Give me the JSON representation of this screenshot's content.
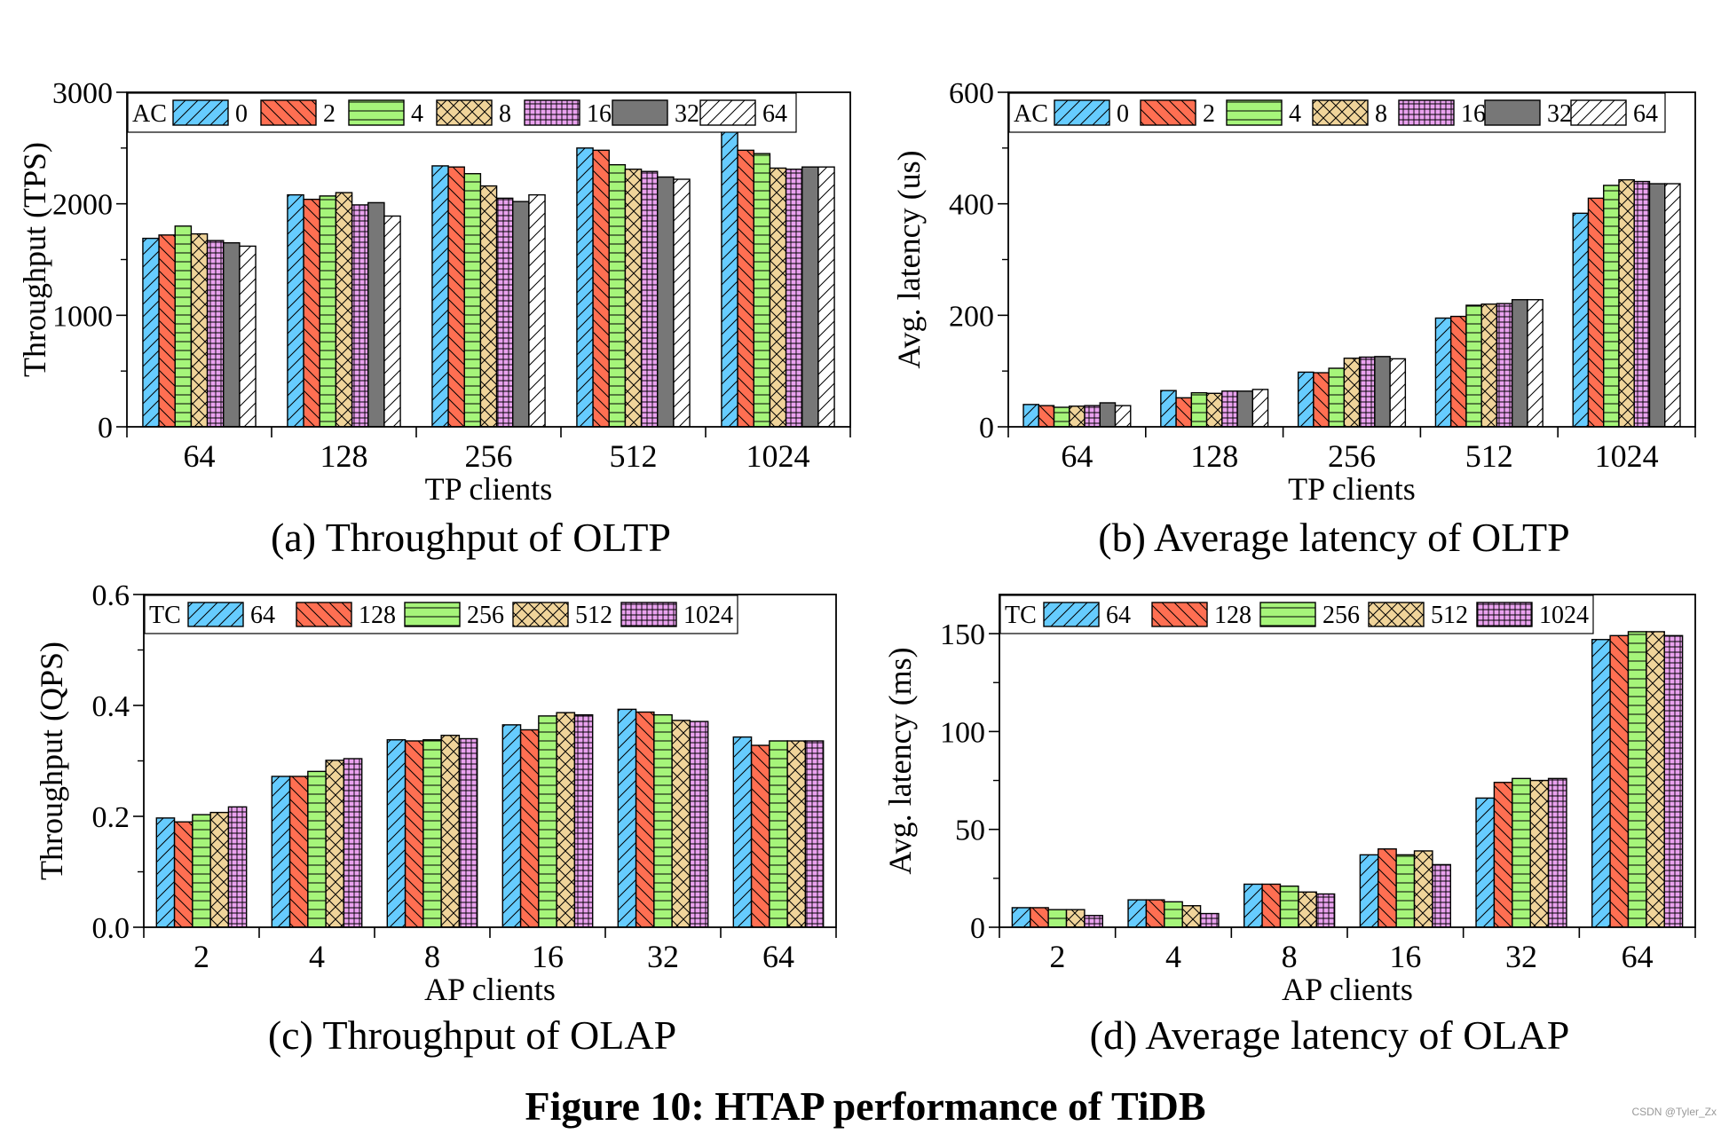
{
  "figure_caption": "Figure 10: HTAP performance of TiDB",
  "watermark": "CSDN @Tyler_Zx",
  "colors": {
    "blue": "#66ccff",
    "red": "#ff6f52",
    "green": "#a6f57a",
    "tan": "#f0d49a",
    "purple": "#eaa2ef",
    "gray": "#777777",
    "white": "#ffffff"
  },
  "chart_data": [
    {
      "type": "bar",
      "subcaption": "(a) Throughput of OLTP",
      "xlabel": "TP clients",
      "ylabel": "Throughput (TPS)",
      "ylim": [
        0,
        3000
      ],
      "yticks": [
        "0",
        "1000",
        "2000",
        "3000"
      ],
      "categories": [
        "64",
        "128",
        "256",
        "512",
        "1024"
      ],
      "legend_title": "AC",
      "legend_position": "top",
      "series": [
        {
          "name": "0",
          "values": [
            1690,
            2080,
            2340,
            2500,
            2680
          ]
        },
        {
          "name": "2",
          "values": [
            1720,
            2040,
            2330,
            2480,
            2480
          ]
        },
        {
          "name": "4",
          "values": [
            1800,
            2070,
            2270,
            2350,
            2450
          ]
        },
        {
          "name": "8",
          "values": [
            1730,
            2100,
            2160,
            2310,
            2320
          ]
        },
        {
          "name": "16",
          "values": [
            1670,
            1990,
            2050,
            2290,
            2310
          ]
        },
        {
          "name": "32",
          "values": [
            1650,
            2010,
            2020,
            2240,
            2330
          ]
        },
        {
          "name": "64",
          "values": [
            1620,
            1890,
            2080,
            2220,
            2330
          ]
        }
      ]
    },
    {
      "type": "bar",
      "subcaption": "(b) Average latency of OLTP",
      "xlabel": "TP clients",
      "ylabel": "Avg. latency (us)",
      "ylim": [
        0,
        600
      ],
      "yticks": [
        "0",
        "200",
        "400",
        "600"
      ],
      "categories": [
        "64",
        "128",
        "256",
        "512",
        "1024"
      ],
      "legend_title": "AC",
      "legend_position": "top",
      "series": [
        {
          "name": "0",
          "values": [
            40,
            65,
            98,
            195,
            383
          ]
        },
        {
          "name": "2",
          "values": [
            38,
            52,
            97,
            198,
            410
          ]
        },
        {
          "name": "4",
          "values": [
            35,
            61,
            105,
            218,
            433
          ]
        },
        {
          "name": "8",
          "values": [
            37,
            60,
            123,
            220,
            443
          ]
        },
        {
          "name": "16",
          "values": [
            38,
            64,
            125,
            221,
            440
          ]
        },
        {
          "name": "32",
          "values": [
            43,
            64,
            126,
            228,
            436
          ]
        },
        {
          "name": "64",
          "values": [
            38,
            67,
            122,
            228,
            436
          ]
        }
      ]
    },
    {
      "type": "bar",
      "subcaption": "(c) Throughput of OLAP",
      "xlabel": "AP clients",
      "ylabel": "Throughput (QPS)",
      "ylim": [
        0,
        0.6
      ],
      "yticks": [
        "0.0",
        "0.2",
        "0.4",
        "0.6"
      ],
      "categories": [
        "2",
        "4",
        "8",
        "16",
        "32",
        "64"
      ],
      "legend_title": "TC",
      "legend_position": "top",
      "series": [
        {
          "name": "64",
          "values": [
            0.197,
            0.272,
            0.338,
            0.365,
            0.393,
            0.343
          ]
        },
        {
          "name": "128",
          "values": [
            0.19,
            0.272,
            0.336,
            0.356,
            0.388,
            0.328
          ]
        },
        {
          "name": "256",
          "values": [
            0.203,
            0.281,
            0.338,
            0.381,
            0.383,
            0.336
          ]
        },
        {
          "name": "512",
          "values": [
            0.207,
            0.301,
            0.346,
            0.387,
            0.373,
            0.336
          ]
        },
        {
          "name": "1024",
          "values": [
            0.217,
            0.304,
            0.34,
            0.383,
            0.371,
            0.336
          ]
        }
      ]
    },
    {
      "type": "bar",
      "subcaption": "(d) Average latency of OLAP",
      "xlabel": "AP clients",
      "ylabel": "Avg. latency (ms)",
      "ylim": [
        0,
        170
      ],
      "yticks": [
        "0",
        "50",
        "100",
        "150"
      ],
      "categories": [
        "2",
        "4",
        "8",
        "16",
        "32",
        "64"
      ],
      "legend_title": "TC",
      "legend_position": "top",
      "series": [
        {
          "name": "64",
          "values": [
            10,
            14,
            22,
            37,
            66,
            147
          ]
        },
        {
          "name": "128",
          "values": [
            10,
            14,
            22,
            40,
            74,
            149
          ]
        },
        {
          "name": "256",
          "values": [
            9,
            13,
            21,
            37,
            76,
            151
          ]
        },
        {
          "name": "512",
          "values": [
            9,
            11,
            18,
            39,
            75,
            151
          ]
        },
        {
          "name": "1024",
          "values": [
            6,
            7,
            17,
            32,
            76,
            149
          ]
        }
      ]
    }
  ]
}
